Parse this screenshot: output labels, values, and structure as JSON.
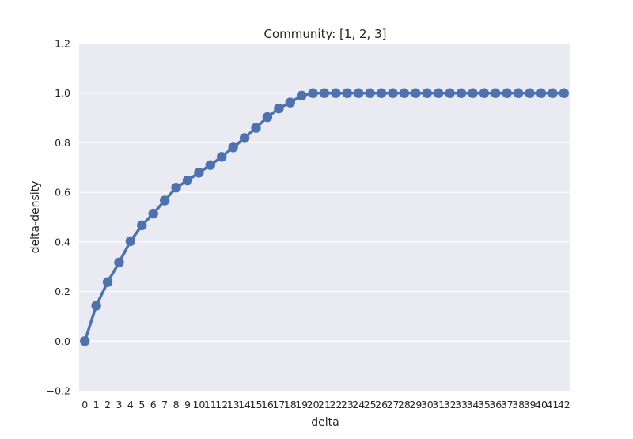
{
  "chart_data": {
    "type": "line",
    "title": "Community: [1, 2, 3]",
    "xlabel": "delta",
    "ylabel": "delta-density",
    "ylim": [
      -0.2,
      1.2
    ],
    "yticks": [
      "−0.2",
      "0.0",
      "0.2",
      "0.4",
      "0.6",
      "0.8",
      "1.0",
      "1.2"
    ],
    "ytick_values": [
      -0.2,
      0.0,
      0.2,
      0.4,
      0.6,
      0.8,
      1.0,
      1.2
    ],
    "categories": [
      "0",
      "1",
      "2",
      "3",
      "4",
      "5",
      "6",
      "7",
      "8",
      "9",
      "10",
      "11",
      "12",
      "13",
      "14",
      "15",
      "16",
      "17",
      "18",
      "19",
      "20",
      "21",
      "22",
      "23",
      "24",
      "25",
      "26",
      "27",
      "28",
      "29",
      "30",
      "31",
      "32",
      "33",
      "34",
      "35",
      "36",
      "37",
      "38",
      "39",
      "40",
      "41",
      "42"
    ],
    "series": [
      {
        "values": [
          0.0,
          0.143,
          0.238,
          0.317,
          0.403,
          0.467,
          0.514,
          0.567,
          0.619,
          0.648,
          0.679,
          0.71,
          0.743,
          0.781,
          0.819,
          0.86,
          0.903,
          0.938,
          0.962,
          0.99,
          1.0,
          1.0,
          1.0,
          1.0,
          1.0,
          1.0,
          1.0,
          1.0,
          1.0,
          1.0,
          1.0,
          1.0,
          1.0,
          1.0,
          1.0,
          1.0,
          1.0,
          1.0,
          1.0,
          1.0,
          1.0,
          1.0,
          1.0
        ]
      }
    ],
    "grid": true,
    "colors": {
      "background": "#eaeaf2",
      "grid": "#ffffff",
      "line": "#4c72b0"
    }
  }
}
